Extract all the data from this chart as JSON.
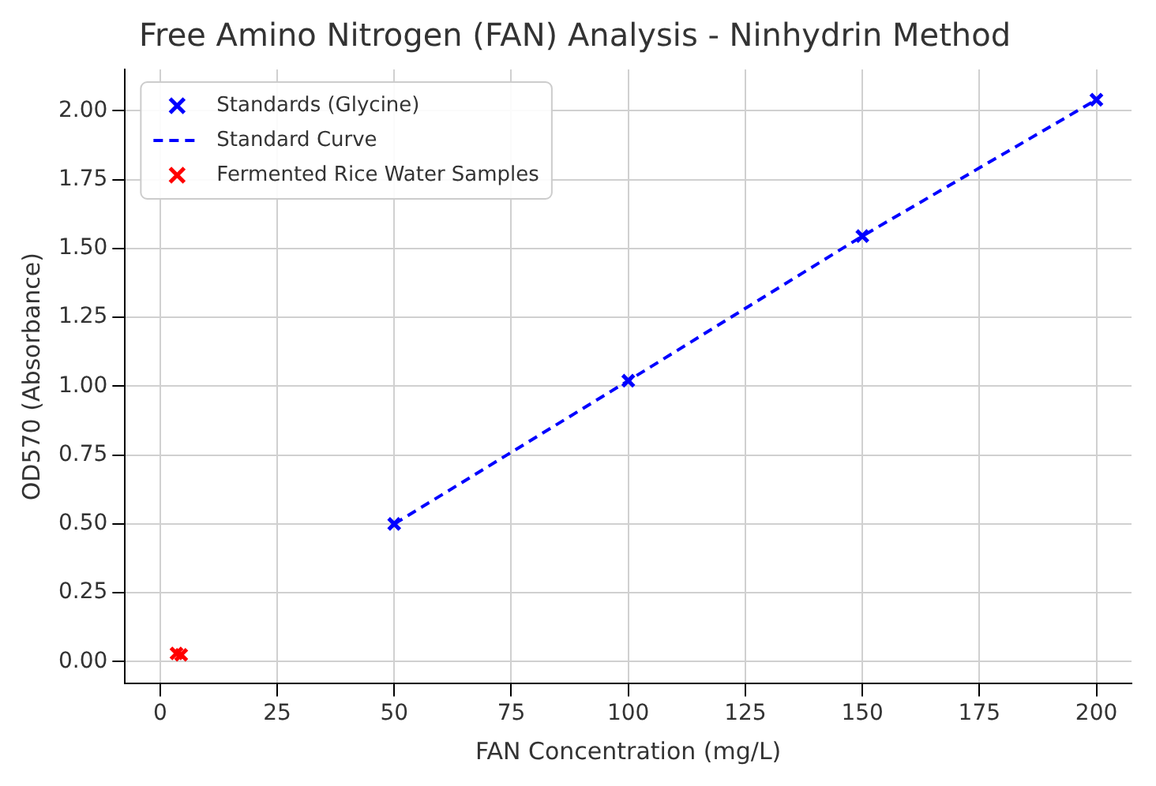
{
  "chart_data": {
    "type": "scatter",
    "title": "Free Amino Nitrogen (FAN) Analysis - Ninhydrin Method",
    "xlabel": "FAN Concentration (mg/L)",
    "ylabel": "OD570 (Absorbance)",
    "xlim": [
      -7.5,
      207.5
    ],
    "xticks": [
      0,
      25,
      50,
      75,
      100,
      125,
      150,
      175,
      200
    ],
    "ylim": [
      -0.08,
      2.15
    ],
    "yticks": [
      {
        "value": 0,
        "label": "0.00"
      },
      {
        "value": 0.25,
        "label": "0.25"
      },
      {
        "value": 0.5,
        "label": "0.50"
      },
      {
        "value": 0.75,
        "label": "0.75"
      },
      {
        "value": 1,
        "label": "1.00"
      },
      {
        "value": 1.25,
        "label": "1.25"
      },
      {
        "value": 1.5,
        "label": "1.50"
      },
      {
        "value": 1.75,
        "label": "1.75"
      },
      {
        "value": 2,
        "label": "2.00"
      }
    ],
    "grid": true,
    "legend": "top left",
    "series": [
      {
        "name": "Standards (Glycine)",
        "type": "scatter",
        "marker": "cross",
        "color": "#0000ff",
        "x": [
          50,
          100,
          150,
          200
        ],
        "values": [
          0.5,
          1.02,
          1.545,
          2.04
        ]
      },
      {
        "name": "Standard Curve",
        "type": "line",
        "marker": "none",
        "line_style": "dashed",
        "color": "#0000ff",
        "x": [
          50,
          100,
          150,
          200
        ],
        "values": [
          0.5,
          1.02,
          1.545,
          2.04
        ]
      },
      {
        "name": "Fermented Rice Water Samples",
        "type": "scatter",
        "marker": "cross",
        "color": "#ff0000",
        "x": [
          3.5,
          4.5
        ],
        "values": [
          0.03,
          0.025
        ]
      }
    ]
  }
}
